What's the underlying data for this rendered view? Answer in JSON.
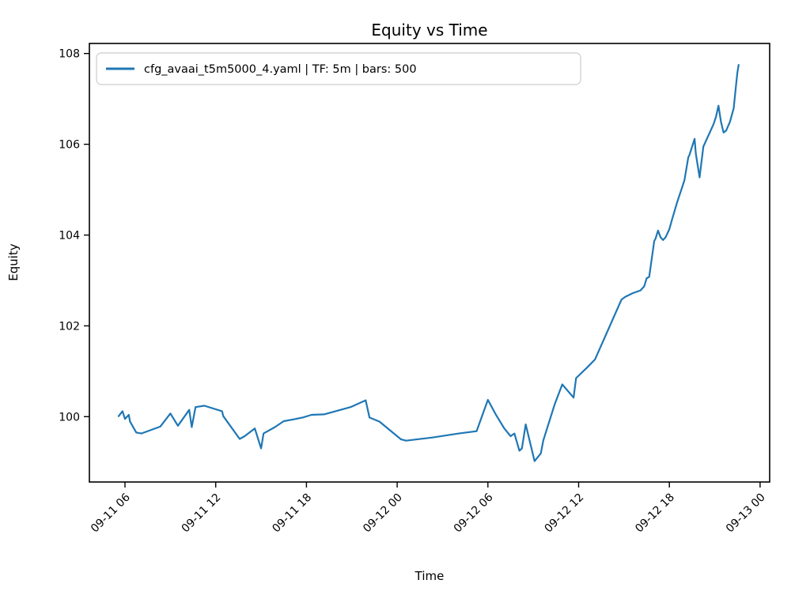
{
  "figure": {
    "title": "Equity vs Time",
    "xlabel": "Time",
    "ylabel": "Equity",
    "legend": {
      "label": "cfg_avaai_t5m5000_4.yaml | TF: 5m | bars: 500",
      "position": "upper left"
    }
  },
  "colors": {
    "line": "#1f77b4",
    "text": "#000000",
    "axes": "#000000",
    "legend_border": "#cccccc",
    "background": "#ffffff"
  },
  "chart_data": {
    "type": "line",
    "title": "Equity vs Time",
    "xlabel": "Time",
    "ylabel": "Equity",
    "grid": false,
    "legend_position": "upper left",
    "x_tick_labels": [
      "09-11 06",
      "09-11 12",
      "09-11 18",
      "09-12 00",
      "09-12 06",
      "09-12 12",
      "09-12 18",
      "09-13 00"
    ],
    "y_ticks": [
      100,
      102,
      104,
      106,
      108
    ],
    "ylim": [
      98.56,
      108.22
    ],
    "xlim": [
      "09-11 03:39",
      "09-13 00:38"
    ],
    "series": [
      {
        "name": "cfg_avaai_t5m5000_4.yaml | TF: 5m | bars: 500",
        "color": "#1f77b4",
        "points": [
          [
            "09-11 05:35",
            100.01
          ],
          [
            "09-11 05:50",
            100.12
          ],
          [
            "09-11 06:00",
            99.95
          ],
          [
            "09-11 06:15",
            100.04
          ],
          [
            "09-11 06:20",
            99.89
          ],
          [
            "09-11 06:45",
            99.65
          ],
          [
            "09-11 07:05",
            99.63
          ],
          [
            "09-11 08:20",
            99.78
          ],
          [
            "09-11 09:00",
            100.07
          ],
          [
            "09-11 09:30",
            99.8
          ],
          [
            "09-11 10:15",
            100.15
          ],
          [
            "09-11 10:25",
            99.77
          ],
          [
            "09-11 10:40",
            100.21
          ],
          [
            "09-11 11:15",
            100.24
          ],
          [
            "09-11 12:25",
            100.12
          ],
          [
            "09-11 12:30",
            100.01
          ],
          [
            "09-11 13:35",
            99.51
          ],
          [
            "09-11 13:55",
            99.57
          ],
          [
            "09-11 14:35",
            99.74
          ],
          [
            "09-11 15:00",
            99.3
          ],
          [
            "09-11 15:10",
            99.63
          ],
          [
            "09-11 15:55",
            99.77
          ],
          [
            "09-11 16:30",
            99.9
          ],
          [
            "09-11 17:10",
            99.94
          ],
          [
            "09-11 17:45",
            99.98
          ],
          [
            "09-11 18:20",
            100.04
          ],
          [
            "09-11 19:10",
            100.05
          ],
          [
            "09-11 20:55",
            100.21
          ],
          [
            "09-11 21:55",
            100.36
          ],
          [
            "09-11 22:10",
            99.98
          ],
          [
            "09-11 22:50",
            99.89
          ],
          [
            "09-12 00:15",
            99.5
          ],
          [
            "09-12 00:35",
            99.47
          ],
          [
            "09-12 02:20",
            99.54
          ],
          [
            "09-12 04:05",
            99.63
          ],
          [
            "09-12 05:15",
            99.68
          ],
          [
            "09-12 06:00",
            100.37
          ],
          [
            "09-12 06:30",
            100.06
          ],
          [
            "09-12 07:05",
            99.74
          ],
          [
            "09-12 07:30",
            99.57
          ],
          [
            "09-12 07:45",
            99.63
          ],
          [
            "09-12 08:05",
            99.25
          ],
          [
            "09-12 08:15",
            99.3
          ],
          [
            "09-12 08:30",
            99.83
          ],
          [
            "09-12 09:05",
            99.02
          ],
          [
            "09-12 09:30",
            99.19
          ],
          [
            "09-12 09:40",
            99.48
          ],
          [
            "09-12 10:25",
            100.27
          ],
          [
            "09-12 10:55",
            100.71
          ],
          [
            "09-12 11:40",
            100.42
          ],
          [
            "09-12 11:50",
            100.85
          ],
          [
            "09-12 12:35",
            101.09
          ],
          [
            "09-12 13:05",
            101.26
          ],
          [
            "09-12 14:50",
            102.58
          ],
          [
            "09-12 15:05",
            102.64
          ],
          [
            "09-12 15:35",
            102.72
          ],
          [
            "09-12 16:05",
            102.78
          ],
          [
            "09-12 16:20",
            102.87
          ],
          [
            "09-12 16:30",
            103.05
          ],
          [
            "09-12 16:40",
            103.08
          ],
          [
            "09-12 17:00",
            103.87
          ],
          [
            "09-12 17:05",
            103.92
          ],
          [
            "09-12 17:15",
            104.1
          ],
          [
            "09-12 17:25",
            103.95
          ],
          [
            "09-12 17:35",
            103.89
          ],
          [
            "09-12 17:45",
            103.95
          ],
          [
            "09-12 18:00",
            104.13
          ],
          [
            "09-12 18:10",
            104.33
          ],
          [
            "09-12 18:30",
            104.71
          ],
          [
            "09-12 18:50",
            105.04
          ],
          [
            "09-12 19:00",
            105.21
          ],
          [
            "09-12 19:15",
            105.71
          ],
          [
            "09-12 19:20",
            105.77
          ],
          [
            "09-12 19:40",
            106.12
          ],
          [
            "09-12 19:45",
            105.79
          ],
          [
            "09-12 20:00",
            105.27
          ],
          [
            "09-12 20:15",
            105.95
          ],
          [
            "09-12 20:55",
            106.44
          ],
          [
            "09-12 21:05",
            106.61
          ],
          [
            "09-12 21:15",
            106.85
          ],
          [
            "09-12 21:25",
            106.49
          ],
          [
            "09-12 21:35",
            106.26
          ],
          [
            "09-12 21:45",
            106.3
          ],
          [
            "09-12 22:00",
            106.49
          ],
          [
            "09-12 22:15",
            106.79
          ],
          [
            "09-12 22:25",
            107.32
          ],
          [
            "09-12 22:30",
            107.58
          ],
          [
            "09-12 22:35",
            107.75
          ]
        ]
      }
    ]
  }
}
